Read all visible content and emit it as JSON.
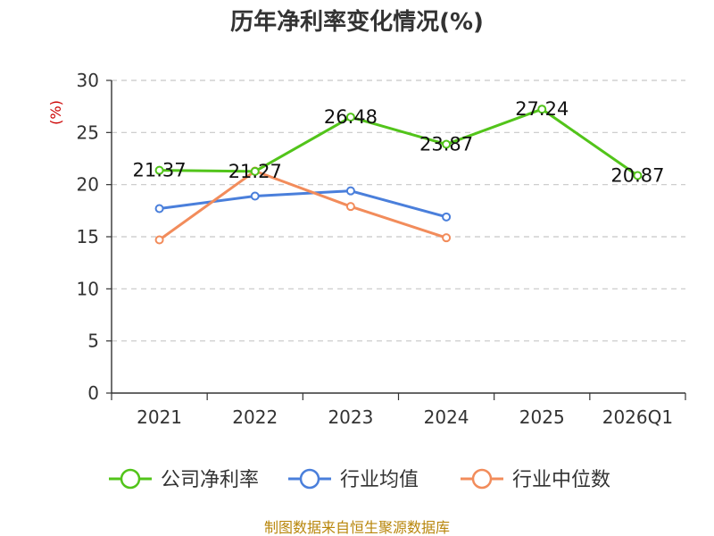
{
  "chart_data": {
    "type": "line",
    "title": "历年净利率变化情况(%)",
    "ylabel": "(%)",
    "xlabel": "",
    "categories": [
      "2021",
      "2022",
      "2023",
      "2024",
      "2025",
      "2026Q1"
    ],
    "yticks": [
      0,
      5,
      10,
      15,
      20,
      25,
      30
    ],
    "ylim": [
      0,
      30
    ],
    "grid": true,
    "legend_position": "bottom",
    "series": [
      {
        "name": "公司净利率",
        "color": "#52c41a",
        "values": [
          21.37,
          21.27,
          26.48,
          23.87,
          27.24,
          20.87
        ],
        "labels": true
      },
      {
        "name": "行业均值",
        "color": "#4a7fdb",
        "values": [
          17.7,
          18.9,
          19.4,
          16.9,
          null,
          null
        ],
        "labels": false
      },
      {
        "name": "行业中位数",
        "color": "#f28c5b",
        "values": [
          14.7,
          21.3,
          17.9,
          14.9,
          null,
          null
        ],
        "labels": false
      }
    ]
  },
  "source": "制图数据来自恒生聚源数据库"
}
